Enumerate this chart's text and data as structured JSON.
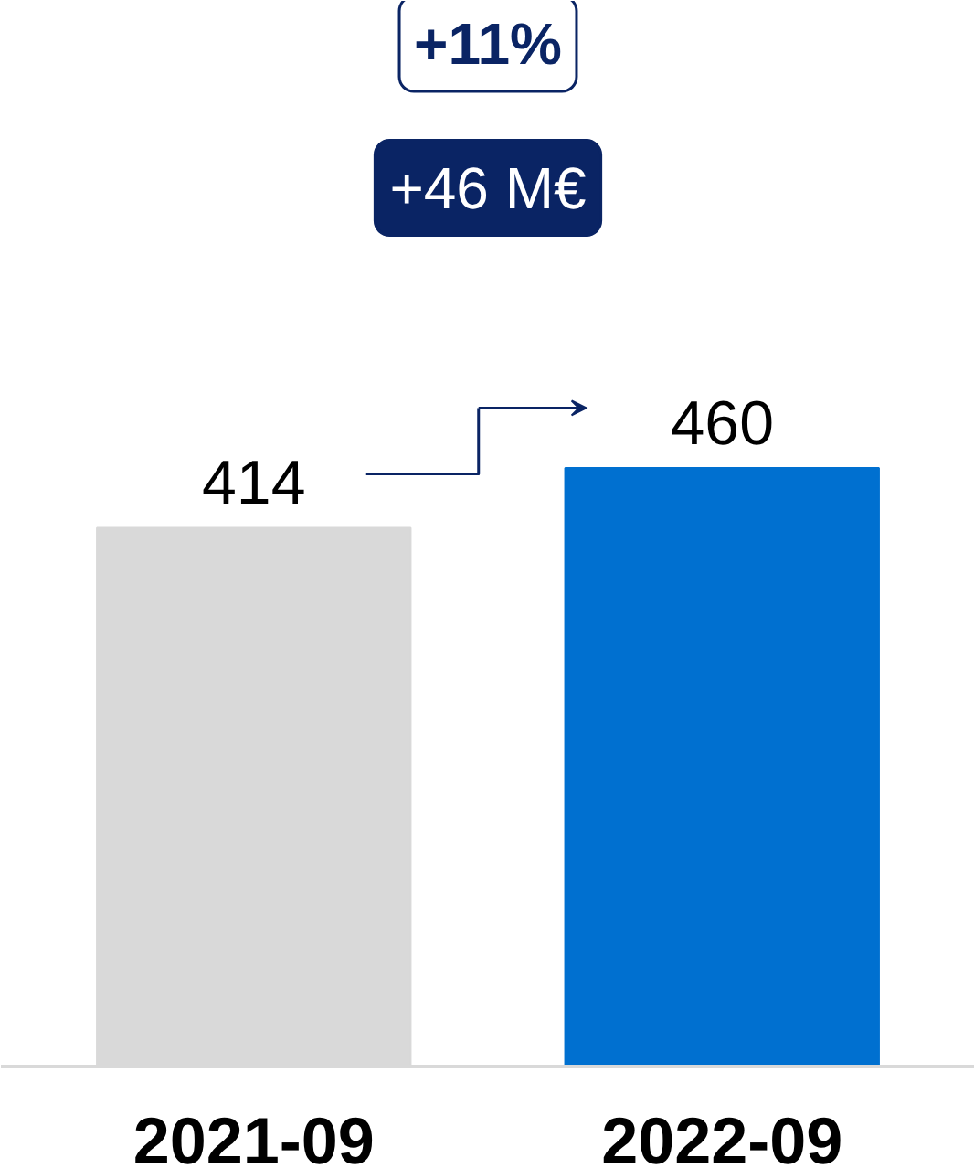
{
  "chart_data": {
    "type": "bar",
    "categories": [
      "2021-09",
      "2022-09"
    ],
    "values": [
      414,
      460
    ],
    "colors": [
      "#d9d9d9",
      "#0070d0"
    ],
    "data_labels": true,
    "annotations": [
      "+11%",
      "+46 M€"
    ]
  }
}
